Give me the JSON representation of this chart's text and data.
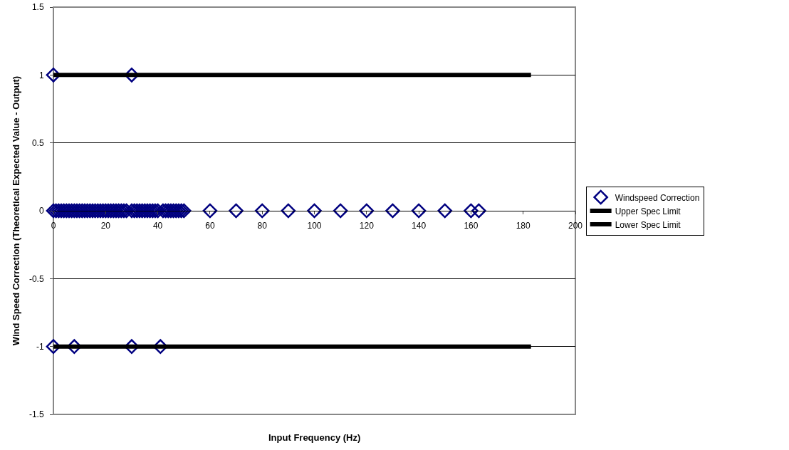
{
  "chart_data": {
    "type": "scatter",
    "xlabel": "Input Frequency (Hz)",
    "ylabel": "Wind Speed Correction (Theoretical Expected Value - Output)",
    "xlim": [
      0,
      200
    ],
    "xticks": [
      0,
      20,
      40,
      60,
      80,
      100,
      120,
      140,
      160,
      180,
      200
    ],
    "ylim": [
      -1.5,
      1.5
    ],
    "yticks": [
      -1.5,
      -1,
      -0.5,
      0,
      0.5,
      1,
      1.5
    ],
    "grid": "y",
    "legend": "right",
    "marker": "diamond",
    "series": [
      {
        "name": "Windspeed Correction",
        "color": "#000080",
        "x": [
          0,
          30,
          0,
          1,
          2,
          3,
          4,
          5,
          6,
          7,
          8,
          9,
          10,
          11,
          12,
          13,
          14,
          15,
          16,
          17,
          18,
          19,
          20,
          21,
          22,
          23,
          24,
          25,
          26,
          27,
          28,
          30,
          31,
          32,
          33,
          34,
          35,
          36,
          37,
          38,
          39,
          40,
          42,
          43,
          44,
          45,
          46,
          47,
          48,
          49,
          50,
          60,
          70,
          80,
          90,
          100,
          110,
          120,
          130,
          140,
          150,
          160,
          163,
          0,
          8,
          30,
          41
        ],
        "values": [
          1,
          1,
          0,
          0,
          0,
          0,
          0,
          0,
          0,
          0,
          0,
          0,
          0,
          0,
          0,
          0,
          0,
          0,
          0,
          0,
          0,
          0,
          0,
          0,
          0,
          0,
          0,
          0,
          0,
          0,
          0,
          0,
          0,
          0,
          0,
          0,
          0,
          0,
          0,
          0,
          0,
          0,
          0,
          0,
          0,
          0,
          0,
          0,
          0,
          0,
          0,
          0,
          0,
          0,
          0,
          0,
          0,
          0,
          0,
          0,
          0,
          0,
          0,
          -1,
          -1,
          -1,
          -1
        ]
      },
      {
        "name": "Upper Spec Limit",
        "color": "#000000",
        "type": "line",
        "marker": "none",
        "x": [
          0,
          183
        ],
        "values": [
          1,
          1
        ]
      },
      {
        "name": "Lower Spec Limit",
        "color": "#000000",
        "type": "line",
        "marker": "none",
        "x": [
          0,
          183
        ],
        "values": [
          -1,
          -1
        ]
      }
    ]
  }
}
